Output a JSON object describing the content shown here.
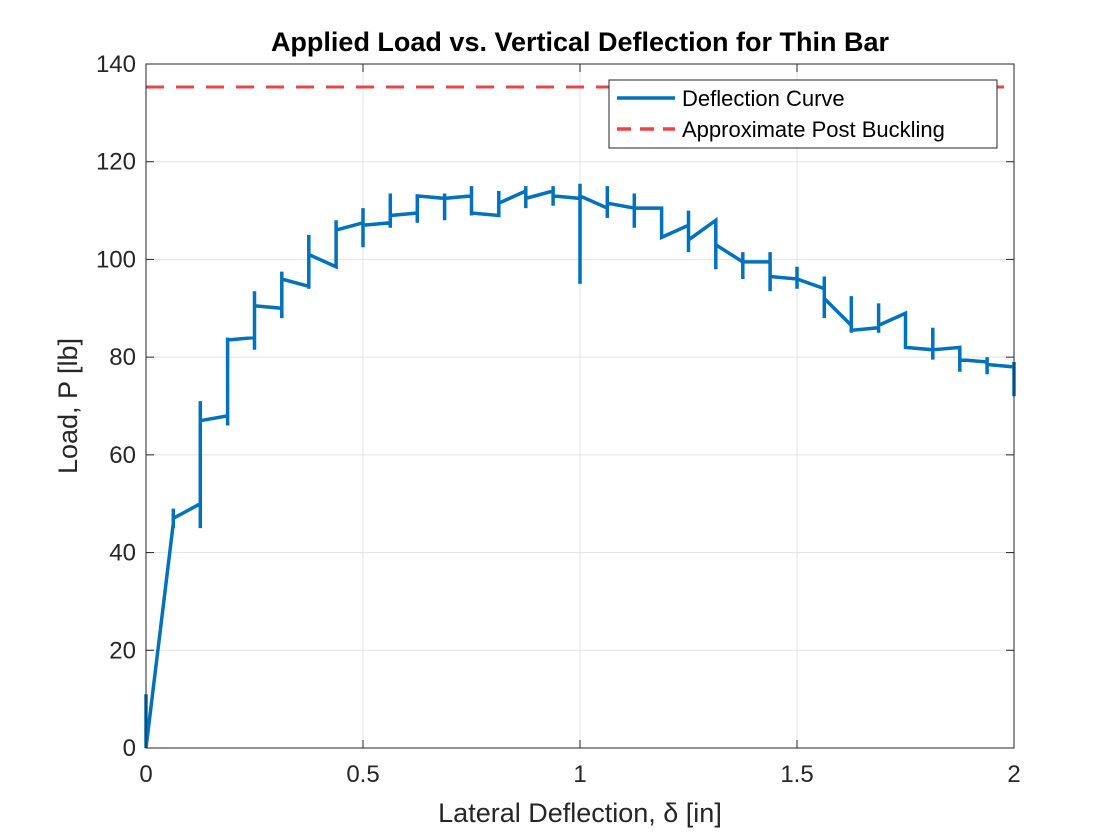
{
  "chart_data": {
    "type": "line",
    "title": "Applied Load vs. Vertical Deflection for Thin Bar",
    "xlabel": "Lateral Deflection, δ [in]",
    "ylabel": "Load, P [lb]",
    "xlim": [
      0,
      2
    ],
    "ylim": [
      0,
      140
    ],
    "xticks": [
      0,
      0.5,
      1,
      1.5,
      2
    ],
    "xtick_labels": [
      "0",
      "0.5",
      "1",
      "1.5",
      "2"
    ],
    "yticks": [
      0,
      20,
      40,
      60,
      80,
      100,
      120,
      140
    ],
    "ytick_labels": [
      "0",
      "20",
      "40",
      "60",
      "80",
      "100",
      "120",
      "140"
    ],
    "grid": true,
    "legend_position": "top-right",
    "series": [
      {
        "name": "Deflection Curve",
        "style": "solid",
        "color": "#0072BD",
        "x": [
          0,
          0,
          0,
          0.063,
          0.063,
          0.063,
          0.063,
          0.125,
          0.125,
          0.125,
          0.125,
          0.188,
          0.188,
          0.188,
          0.188,
          0.25,
          0.25,
          0.25,
          0.25,
          0.313,
          0.313,
          0.313,
          0.313,
          0.375,
          0.375,
          0.375,
          0.375,
          0.438,
          0.438,
          0.438,
          0.438,
          0.5,
          0.5,
          0.5,
          0.5,
          0.563,
          0.563,
          0.563,
          0.563,
          0.625,
          0.625,
          0.625,
          0.625,
          0.688,
          0.688,
          0.688,
          0.688,
          0.75,
          0.75,
          0.75,
          0.75,
          0.813,
          0.813,
          0.813,
          0.813,
          0.875,
          0.875,
          0.875,
          0.875,
          0.938,
          0.938,
          0.938,
          0.938,
          1,
          1,
          1,
          1,
          1.063,
          1.063,
          1.063,
          1.063,
          1.125,
          1.125,
          1.125,
          1.125,
          1.188,
          1.188,
          1.188,
          1.188,
          1.25,
          1.25,
          1.25,
          1.25,
          1.313,
          1.313,
          1.313,
          1.313,
          1.375,
          1.375,
          1.375,
          1.375,
          1.438,
          1.438,
          1.438,
          1.438,
          1.5,
          1.5,
          1.5,
          1.5,
          1.563,
          1.563,
          1.563,
          1.563,
          1.625,
          1.625,
          1.625,
          1.625,
          1.688,
          1.688,
          1.688,
          1.688,
          1.75,
          1.75,
          1.75,
          1.75,
          1.813,
          1.813,
          1.813,
          1.813,
          1.875,
          1.875,
          1.875,
          1.875,
          1.938,
          1.938,
          1.938,
          1.938,
          2,
          2,
          2
        ],
        "y": [
          0,
          11,
          0,
          46,
          49,
          45,
          47,
          50,
          71,
          45,
          67,
          68,
          84,
          66,
          83.5,
          84,
          93.5,
          81.5,
          90.5,
          90,
          97.5,
          88,
          96,
          94.5,
          105,
          94,
          101,
          98.5,
          108,
          99,
          106,
          107.5,
          110.5,
          102.5,
          107,
          107.5,
          113.5,
          106.5,
          109,
          109.5,
          113,
          107.5,
          113,
          112.5,
          113.5,
          108,
          112.5,
          113,
          115,
          109,
          109.5,
          109,
          114,
          109,
          111.5,
          114,
          115,
          110.5,
          112.5,
          114,
          115,
          111,
          113,
          112.5,
          115.5,
          95,
          113,
          110.5,
          115,
          108.5,
          111.5,
          110.5,
          113.5,
          106.5,
          110.5,
          110.5,
          110.5,
          104.5,
          104.5,
          107,
          110,
          101.5,
          104,
          108,
          108,
          98,
          103,
          99.5,
          101.5,
          96,
          99.5,
          99.5,
          101.5,
          93.5,
          96.5,
          96,
          98.5,
          94,
          96,
          94,
          96.5,
          88,
          92,
          86.5,
          92.5,
          85,
          85.5,
          86,
          91,
          85,
          86.5,
          89,
          89,
          82,
          82,
          81.5,
          86,
          79.5,
          81.5,
          82,
          82,
          77,
          79.5,
          79,
          80,
          76.5,
          78.5,
          78,
          79,
          72
        ]
      },
      {
        "name": "Approximate Post Buckling",
        "style": "dashed",
        "color": "#EE4444",
        "x": [
          0,
          2
        ],
        "y": [
          135.3,
          135.3
        ]
      }
    ]
  }
}
